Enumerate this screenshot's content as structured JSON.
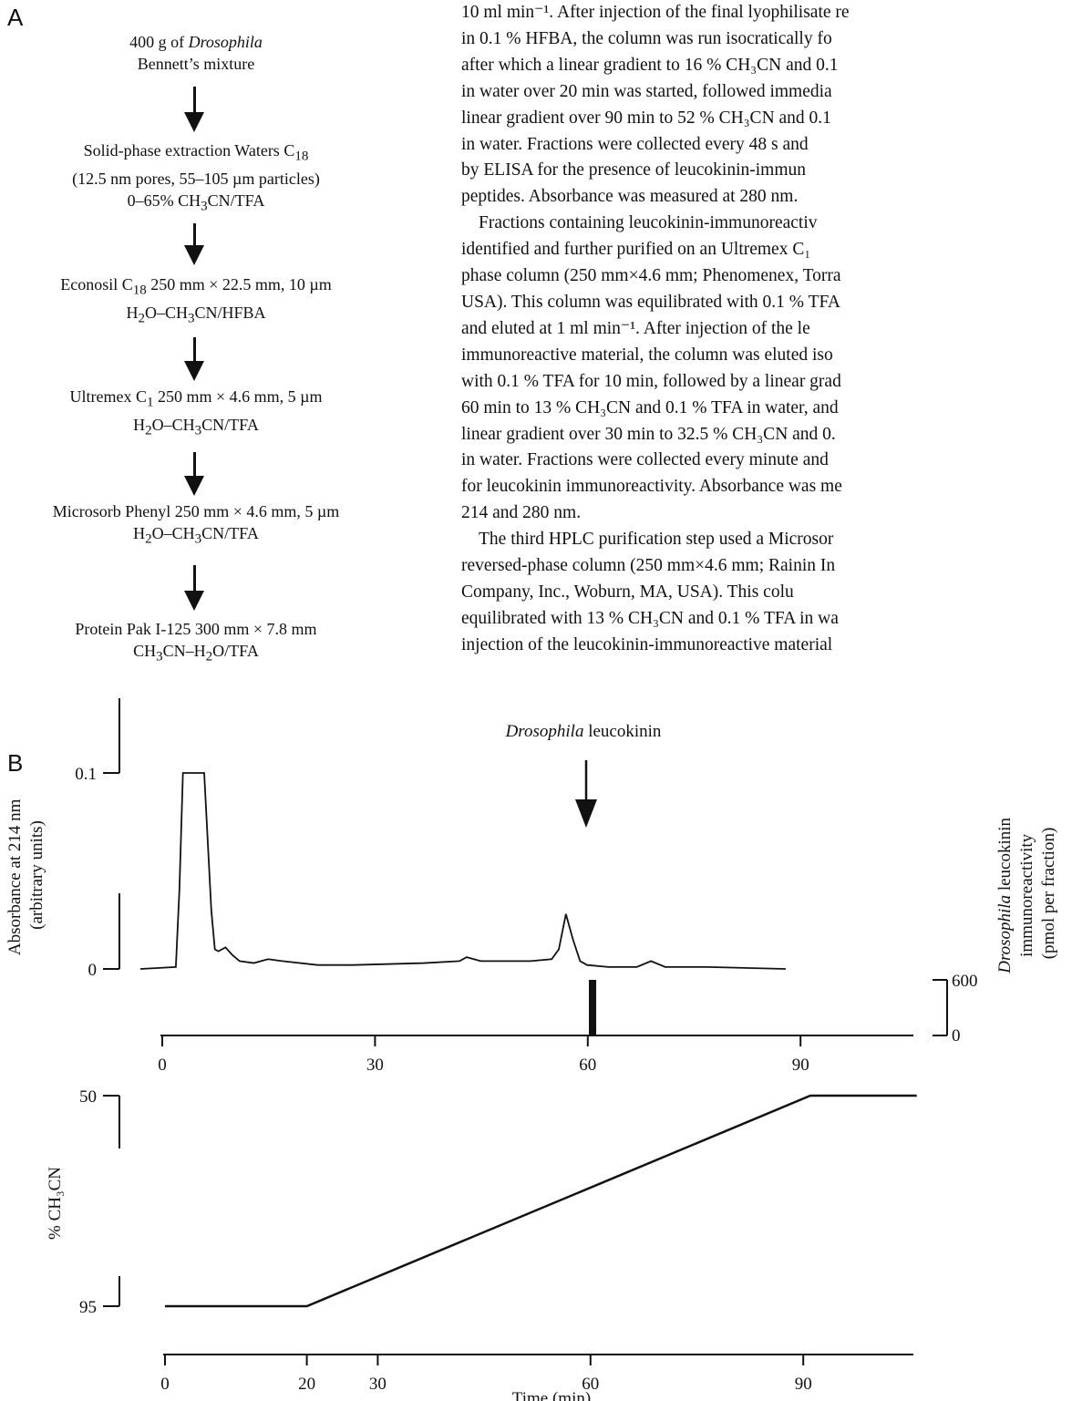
{
  "panel_a": {
    "letter": "A",
    "steps": [
      [
        "400 g of ",
        "Drosophila",
        "",
        "Bennett’s mixture"
      ],
      [
        "Solid-phase extraction Waters C",
        "18",
        "",
        "(12.5 nm pores, 55–105 µm particles)",
        "0–65% CH",
        "3",
        "CN/TFA"
      ],
      [
        "Econosil C",
        "18",
        " 250 mm × 22.5 mm, 10 µm",
        "H",
        "2",
        "O–CH",
        "3",
        "CN/HFBA"
      ],
      [
        "Ultremex C",
        "1",
        " 250 mm × 4.6 mm, 5 µm",
        "H",
        "2",
        "O–CH",
        "3",
        "CN/TFA"
      ],
      [
        "Microsorb Phenyl 250 mm × 4.6 mm, 5 µm",
        "H",
        "2",
        "O–CH",
        "3",
        "CN/TFA"
      ],
      [
        "Protein Pak I-125 300 mm × 7.8 mm",
        "CH",
        "3",
        "CN–H",
        "2",
        "O/TFA"
      ]
    ]
  },
  "body_text": {
    "p1": [
      "10 ml min⁻¹. After injection of the final lyophilisate re",
      "in 0.1 % HFBA, the column was run isocratically fo",
      "after which a linear gradient to 16 % CH₃CN and 0.1",
      "in water over 20 min was started, followed immedia",
      "linear gradient over 90 min to 52 % CH₃CN and 0.1",
      "in water. Fractions were collected every 48 s and",
      "by ELISA for the presence of leucokinin-immun",
      "peptides. Absorbance was measured at 280 nm."
    ],
    "p2": [
      "Fractions containing leucokinin-immunoreactiv",
      "identified and further purified on an Ultremex C₁",
      "phase column (250 mm×4.6 mm; Phenomenex, Torra",
      "USA). This column was equilibrated with 0.1 % TFA",
      "and eluted at 1 ml min⁻¹. After injection of the le",
      "immunoreactive material, the column was eluted iso",
      "with 0.1 % TFA for 10 min, followed by a linear grad",
      "60 min to 13 % CH₃CN and 0.1 % TFA in water, and",
      "linear gradient over 30 min to 32.5 % CH₃CN and 0.",
      "in water. Fractions were collected every minute and",
      "for leucokinin immunoreactivity. Absorbance was me",
      "214 and 280 nm."
    ],
    "p3": [
      "The third HPLC purification step used a Microsor",
      "reversed-phase column (250 mm×4.6 mm; Rainin In",
      "Company, Inc., Woburn, MA, USA). This colu",
      "equilibrated with 13 % CH₃CN and 0.1 % TFA in wa",
      "injection of the leucokinin-immunoreactive material"
    ]
  },
  "panel_b": {
    "letter": "B",
    "annotation_italic": "Drosophila",
    "annotation_rest": " leucokinin",
    "left_ylabel_line1": "Absorbance at 214 nm",
    "left_ylabel_line2": "(arbitrary units)",
    "right_ylabel_italic": "Drosophila",
    "right_ylabel_rest": " leucokinin",
    "right_ylabel_line2": "immunoreactivity",
    "right_ylabel_line3": "(pmol per fraction)",
    "gradient_ylabel": "% CH₃CN",
    "xlabel": "Time (min)"
  },
  "chart_data": [
    {
      "type": "line",
      "name": "absorbance",
      "ylabel": "Absorbance at 214 nm (arbitrary units)",
      "yticks": [
        "0.1",
        "0"
      ],
      "ylim": [
        0,
        0.1
      ],
      "xlim": [
        0,
        106
      ],
      "x": [
        0,
        5,
        5.5,
        6,
        9,
        10,
        10.5,
        11,
        12,
        13,
        14,
        16,
        18,
        20,
        25,
        30,
        40,
        45,
        46,
        48,
        55,
        58,
        59,
        60,
        61,
        62,
        63,
        66,
        70,
        72,
        74,
        80,
        91
      ],
      "y": [
        0,
        0.001,
        0.04,
        0.1,
        0.1,
        0.03,
        0.01,
        0.009,
        0.011,
        0.007,
        0.004,
        0.003,
        0.005,
        0.004,
        0.002,
        0.002,
        0.003,
        0.004,
        0.006,
        0.004,
        0.004,
        0.005,
        0.01,
        0.028,
        0.015,
        0.004,
        0.002,
        0.001,
        0.001,
        0.004,
        0.001,
        0.001,
        0
      ]
    },
    {
      "type": "bar",
      "name": "immunoreactivity",
      "ylabel": "Drosophila leucokinin immunoreactivity (pmol per fraction)",
      "yticks": [
        "600",
        "0"
      ],
      "ylim": [
        0,
        600
      ],
      "x": [
        60.8
      ],
      "values": [
        600
      ],
      "xticks": [
        "0",
        "30",
        "60",
        "90"
      ]
    },
    {
      "type": "line",
      "name": "gradient",
      "ylabel": "% CH₃CN",
      "yticks": [
        "50",
        "95"
      ],
      "x": [
        0,
        20,
        91,
        106
      ],
      "y": [
        95,
        95,
        50,
        50
      ],
      "xticks": [
        "0",
        "20",
        "30",
        "60",
        "90"
      ],
      "xlabel": "Time (min)"
    }
  ]
}
